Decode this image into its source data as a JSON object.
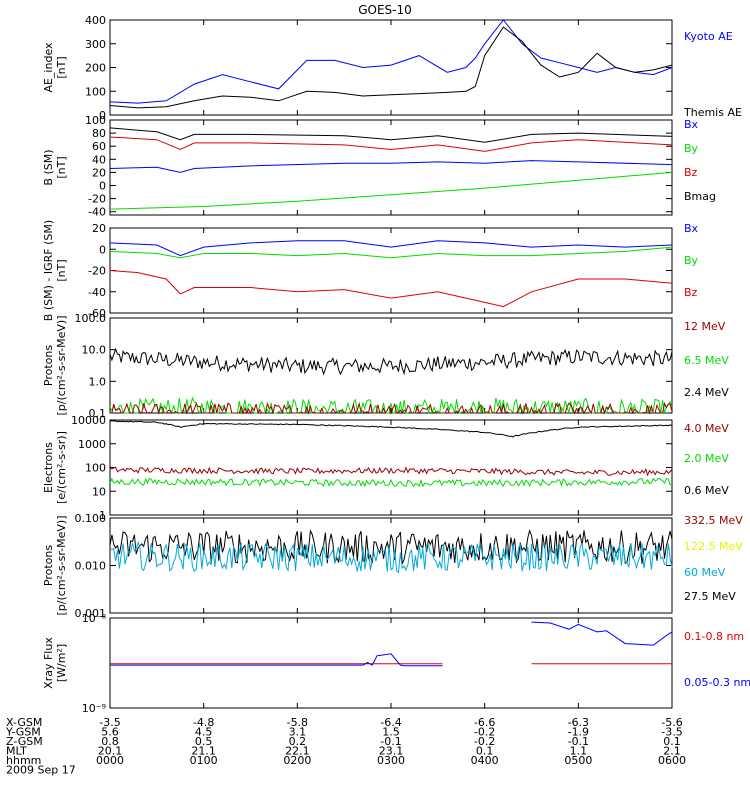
{
  "title": "GOES-10",
  "colors": {
    "blue": "#0000ff",
    "green": "#00dd00",
    "red": "#dd0000",
    "black": "#000000",
    "darkred": "#990000",
    "yellow": "#eeee00",
    "cyan": "#00aadd"
  },
  "time_axis": {
    "ticks": [
      "0000",
      "0100",
      "0200",
      "0300",
      "0400",
      "0500",
      "0600"
    ],
    "rows": [
      {
        "label": "X-GSM",
        "values": [
          "-3.5",
          "-4.8",
          "-5.8",
          "-6.4",
          "-6.6",
          "-6.3",
          "-5.6"
        ]
      },
      {
        "label": "Y-GSM",
        "values": [
          "5.6",
          "4.5",
          "3.1",
          "1.5",
          "-0.2",
          "-1.9",
          "-3.5"
        ]
      },
      {
        "label": "Z-GSM",
        "values": [
          "0.8",
          "0.5",
          "0.2",
          "-0.1",
          "-0.2",
          "-0.1",
          "0.1"
        ]
      },
      {
        "label": "MLT",
        "values": [
          "20.1",
          "21.1",
          "22.1",
          "23.1",
          "0.1",
          "1.1",
          "2.1"
        ]
      },
      {
        "label": "hhmm",
        "values": [
          "0000",
          "0100",
          "0200",
          "0300",
          "0400",
          "0500",
          "0600"
        ]
      }
    ],
    "date": "2009 Sep 17"
  },
  "chart_data": [
    {
      "type": "line",
      "ylabel": "AE_index\n[nT]",
      "ylim": [
        0,
        400
      ],
      "yticks": [
        "0",
        "100",
        "200",
        "300",
        "400"
      ],
      "legend": [
        {
          "text": "Kyoto AE",
          "color": "#0000ff"
        },
        {
          "text": "Themis AE",
          "color": "#000000"
        }
      ],
      "series": [
        {
          "name": "Kyoto AE",
          "color": "#0000ff",
          "x": [
            0,
            0.3,
            0.6,
            0.9,
            1.2,
            1.5,
            1.8,
            2.1,
            2.4,
            2.7,
            3.0,
            3.3,
            3.6,
            3.8,
            3.9,
            4.0,
            4.2,
            4.4,
            4.6,
            4.8,
            5.0,
            5.2,
            5.4,
            5.6,
            5.8,
            6.0
          ],
          "y": [
            55,
            50,
            60,
            130,
            170,
            140,
            110,
            230,
            230,
            200,
            210,
            250,
            180,
            200,
            240,
            300,
            410,
            300,
            240,
            220,
            200,
            180,
            200,
            180,
            170,
            200
          ]
        },
        {
          "name": "Themis AE",
          "color": "#000000",
          "x": [
            0,
            0.3,
            0.6,
            0.9,
            1.2,
            1.5,
            1.8,
            2.1,
            2.4,
            2.7,
            3.0,
            3.3,
            3.6,
            3.8,
            3.9,
            4.0,
            4.2,
            4.4,
            4.6,
            4.8,
            5.0,
            5.2,
            5.4,
            5.6,
            5.8,
            6.0
          ],
          "y": [
            40,
            30,
            35,
            60,
            80,
            75,
            60,
            100,
            95,
            80,
            85,
            90,
            95,
            100,
            120,
            250,
            370,
            310,
            210,
            160,
            180,
            260,
            200,
            180,
            190,
            210
          ]
        }
      ]
    },
    {
      "type": "line",
      "ylabel": "B (SM)\n[nT]",
      "ylim": [
        -45,
        100
      ],
      "yticks": [
        "-40",
        "-20",
        "0",
        "20",
        "40",
        "60",
        "80",
        "100"
      ],
      "legend": [
        {
          "text": "Bx",
          "color": "#0000ff"
        },
        {
          "text": "By",
          "color": "#00dd00"
        },
        {
          "text": "Bz",
          "color": "#dd0000"
        },
        {
          "text": "Bmag",
          "color": "#000000"
        }
      ],
      "series": [
        {
          "name": "Bmag",
          "color": "#000000",
          "x": [
            0,
            0.5,
            0.75,
            0.9,
            1.5,
            2.5,
            3.0,
            3.5,
            4.0,
            4.5,
            5.0,
            6.0
          ],
          "y": [
            88,
            82,
            70,
            78,
            78,
            76,
            70,
            76,
            66,
            78,
            80,
            75
          ]
        },
        {
          "name": "Bz",
          "color": "#dd0000",
          "x": [
            0,
            0.5,
            0.75,
            0.9,
            1.5,
            2.5,
            3.0,
            3.5,
            4.0,
            4.5,
            5.0,
            6.0
          ],
          "y": [
            74,
            70,
            55,
            65,
            65,
            62,
            55,
            62,
            52,
            65,
            70,
            62
          ]
        },
        {
          "name": "Bx",
          "color": "#0000ff",
          "x": [
            0,
            0.5,
            0.75,
            0.9,
            1.5,
            2.5,
            3.0,
            3.5,
            4.0,
            4.5,
            5.0,
            6.0
          ],
          "y": [
            26,
            28,
            20,
            26,
            30,
            34,
            34,
            36,
            34,
            38,
            36,
            32
          ]
        },
        {
          "name": "By",
          "color": "#00dd00",
          "x": [
            0,
            1,
            2,
            3,
            4,
            5,
            6
          ],
          "y": [
            -36,
            -32,
            -24,
            -14,
            -4,
            8,
            20
          ]
        }
      ]
    },
    {
      "type": "line",
      "ylabel": "B (SM) - IGRF (SM)\n[nT]",
      "ylim": [
        -60,
        20
      ],
      "yticks": [
        "-60",
        "-40",
        "-20",
        "0",
        "20"
      ],
      "legend": [
        {
          "text": "Bx",
          "color": "#0000ff"
        },
        {
          "text": "By",
          "color": "#00dd00"
        },
        {
          "text": "Bz",
          "color": "#dd0000"
        }
      ],
      "series": [
        {
          "name": "Bx",
          "color": "#0000ff",
          "x": [
            0,
            0.5,
            0.75,
            1.0,
            1.5,
            2.0,
            2.5,
            3.0,
            3.5,
            4.0,
            4.5,
            5.0,
            5.5,
            6.0
          ],
          "y": [
            6,
            4,
            -6,
            2,
            6,
            8,
            8,
            2,
            8,
            6,
            2,
            4,
            2,
            4
          ]
        },
        {
          "name": "By",
          "color": "#00dd00",
          "x": [
            0,
            0.5,
            0.75,
            1.0,
            1.5,
            2.0,
            2.5,
            3.0,
            3.5,
            4.0,
            4.5,
            5.0,
            5.5,
            6.0
          ],
          "y": [
            -2,
            -4,
            -8,
            -4,
            -4,
            -6,
            -4,
            -8,
            -4,
            -6,
            -6,
            -4,
            -2,
            2
          ]
        },
        {
          "name": "Bz",
          "color": "#dd0000",
          "x": [
            0,
            0.3,
            0.6,
            0.75,
            0.9,
            1.5,
            2.0,
            2.5,
            3.0,
            3.5,
            4.0,
            4.2,
            4.5,
            5.0,
            5.5,
            6.0
          ],
          "y": [
            -20,
            -22,
            -28,
            -42,
            -36,
            -36,
            -40,
            -38,
            -46,
            -40,
            -50,
            -54,
            -40,
            -28,
            -28,
            -32
          ]
        }
      ]
    },
    {
      "type": "line",
      "yscale": "log",
      "ylabel": "Protons\n[p/(cm²-s-sr-MeV)]",
      "ylim": [
        0.1,
        100
      ],
      "yticks": [
        "0.1",
        "1.0",
        "10.0",
        "100.0"
      ],
      "legend": [
        {
          "text": "12 MeV",
          "color": "#990000"
        },
        {
          "text": "6.5 MeV",
          "color": "#00dd00"
        },
        {
          "text": "2.4 MeV",
          "color": "#000000"
        }
      ],
      "series": [
        {
          "name": "2.4 MeV",
          "color": "#000000",
          "noise": 0.25,
          "x": [
            0,
            1,
            2,
            3,
            4,
            5,
            6
          ],
          "y": [
            6,
            4,
            3,
            3,
            4,
            6,
            5
          ]
        },
        {
          "name": "6.5 MeV",
          "color": "#00dd00",
          "noise": 0.35,
          "x": [
            0,
            1,
            2,
            3,
            4,
            5,
            6
          ],
          "y": [
            0.12,
            0.14,
            0.13,
            0.12,
            0.14,
            0.13,
            0.12
          ]
        },
        {
          "name": "12 MeV",
          "color": "#990000",
          "noise": 0.3,
          "x": [
            0,
            1,
            2,
            3,
            4,
            5,
            6
          ],
          "y": [
            0.1,
            0.11,
            0.1,
            0.11,
            0.1,
            0.11,
            0.1
          ]
        }
      ]
    },
    {
      "type": "line",
      "yscale": "log",
      "ylabel": "Electrons\n[e/(cm²-s-sr)]",
      "ylim": [
        1,
        10000
      ],
      "yticks": [
        "1",
        "10",
        "100",
        "1000",
        "10000"
      ],
      "legend": [
        {
          "text": "4.0 MeV",
          "color": "#990000"
        },
        {
          "text": "2.0 MeV",
          "color": "#00dd00"
        },
        {
          "text": "0.6 MeV",
          "color": "#000000"
        }
      ],
      "series": [
        {
          "name": "0.6 MeV",
          "color": "#000000",
          "noise": 0.02,
          "x": [
            0,
            0.5,
            0.75,
            1.0,
            2.0,
            3.0,
            4.0,
            4.3,
            5.0,
            6.0
          ],
          "y": [
            9000,
            8000,
            5000,
            7000,
            6500,
            5000,
            3000,
            2000,
            5000,
            6000
          ]
        },
        {
          "name": "4.0 MeV",
          "color": "#990000",
          "noise": 0.12,
          "x": [
            0,
            1,
            2,
            3,
            4,
            5,
            6
          ],
          "y": [
            80,
            75,
            70,
            75,
            70,
            60,
            65
          ]
        },
        {
          "name": "2.0 MeV",
          "color": "#00dd00",
          "noise": 0.14,
          "x": [
            0,
            1,
            2,
            3,
            4,
            5,
            6
          ],
          "y": [
            25,
            25,
            23,
            22,
            22,
            24,
            26
          ]
        }
      ]
    },
    {
      "type": "line",
      "yscale": "log",
      "ylabel": "Protons\n[p/(cm²-s-sr-MeV)]",
      "ylim": [
        0.001,
        0.1
      ],
      "yticks": [
        "0.001",
        "0.010",
        "0.100"
      ],
      "legend": [
        {
          "text": "332.5 MeV",
          "color": "#990000"
        },
        {
          "text": "122.5 MeV",
          "color": "#eeee00"
        },
        {
          "text": "60 MeV",
          "color": "#00aadd"
        },
        {
          "text": "27.5 MeV",
          "color": "#000000"
        }
      ],
      "series": [
        {
          "name": "27.5 MeV",
          "color": "#000000",
          "noise": 0.35,
          "x": [
            0,
            1,
            2,
            3,
            4,
            5,
            6
          ],
          "y": [
            0.025,
            0.025,
            0.024,
            0.024,
            0.025,
            0.025,
            0.024
          ]
        },
        {
          "name": "60 MeV",
          "color": "#00aadd",
          "noise": 0.3,
          "x": [
            0,
            1,
            2,
            3,
            4,
            5,
            6
          ],
          "y": [
            0.016,
            0.015,
            0.015,
            0.014,
            0.015,
            0.015,
            0.015
          ]
        }
      ]
    },
    {
      "type": "line",
      "yscale": "log",
      "ylabel": "Xray Flux\n[W/m²]",
      "ylim": [
        1e-09,
        1e-08
      ],
      "yticks": [
        "10⁻⁹",
        "10⁻⁸"
      ],
      "legend": [
        {
          "text": "0.1-0.8 nm",
          "color": "#dd0000"
        },
        {
          "text": "0.05-0.3 nm",
          "color": "#0000ff"
        }
      ],
      "series": [
        {
          "name": "0.1-0.8 nm",
          "color": "#dd0000",
          "x": [
            0,
            3.55,
            null,
            4.5,
            6.0
          ],
          "y": [
            3.1e-09,
            3.1e-09,
            null,
            3.1e-09,
            3.1e-09
          ]
        },
        {
          "name": "0.05-0.3 nm",
          "color": "#0000ff",
          "x": [
            0,
            2.7,
            2.75,
            2.8,
            2.85,
            3.0,
            3.1,
            3.15,
            3.55,
            null,
            4.5,
            4.7,
            4.9,
            5.0,
            5.2,
            5.3,
            5.5,
            5.8,
            5.95,
            6.0
          ],
          "y": [
            3e-09,
            3e-09,
            3.2e-09,
            3e-09,
            3.8e-09,
            4e-09,
            3e-09,
            2.95e-09,
            2.95e-09,
            null,
            9e-09,
            8.8e-09,
            7.5e-09,
            8.5e-09,
            7e-09,
            7.2e-09,
            5.2e-09,
            5e-09,
            6.5e-09,
            7e-09
          ]
        }
      ]
    }
  ]
}
